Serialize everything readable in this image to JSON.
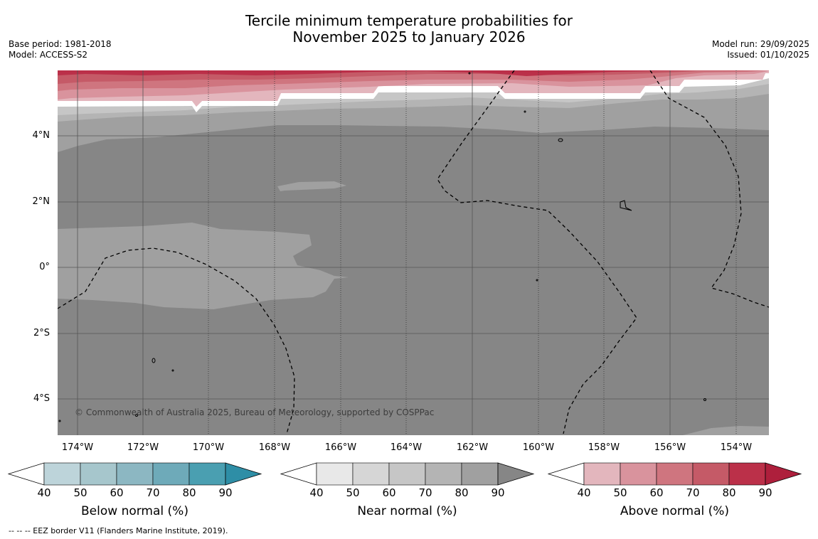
{
  "title_line1": "Tercile minimum temperature probabilities for",
  "title_line2": "November 2025 to January 2026",
  "meta_left": [
    "Base period: 1981-2018",
    "Model: ACCESS-S2"
  ],
  "meta_right": [
    "Model run: 29/09/2025",
    "Issued: 01/10/2025"
  ],
  "lat_labels": [
    "4°N",
    "2°N",
    "0°",
    "2°S",
    "4°S"
  ],
  "lon_labels": [
    "174°W",
    "172°W",
    "170°W",
    "168°W",
    "166°W",
    "164°W",
    "162°W",
    "160°W",
    "158°W",
    "156°W",
    "154°W"
  ],
  "copyright": "© Commonwealth of Australia 2025, Bureau of Meteorology, supported by COSPPac",
  "colorbars": [
    {
      "title": "Below normal (%)",
      "ticks": [
        "40",
        "50",
        "60",
        "70",
        "80",
        "90"
      ],
      "colors": [
        "#bdd4da",
        "#a6c6cc",
        "#8cb7c2",
        "#6eaab9",
        "#4a9fb1",
        "#2e8ea6"
      ]
    },
    {
      "title": "Near normal (%)",
      "ticks": [
        "40",
        "50",
        "60",
        "70",
        "80",
        "90"
      ],
      "colors": [
        "#e8e8e8",
        "#d6d6d6",
        "#c6c6c6",
        "#b4b4b4",
        "#a0a0a0",
        "#868686"
      ]
    },
    {
      "title": "Above normal (%)",
      "ticks": [
        "40",
        "50",
        "60",
        "70",
        "80",
        "90"
      ],
      "colors": [
        "#e3b6bd",
        "#d9939d",
        "#cf757f",
        "#c55a67",
        "#bb3049",
        "#ae1f3c"
      ]
    }
  ],
  "footer": "--  --  -- EEZ border V11 (Flanders Marine Institute, 2019)."
}
